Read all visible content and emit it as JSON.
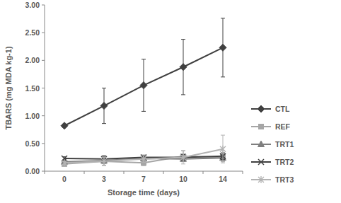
{
  "chart_data": {
    "type": "line",
    "x_label": "Storage time (days)",
    "y_label": "TBARS (mg MDA kg-1)",
    "categories": [
      "0",
      "3",
      "7",
      "10",
      "14"
    ],
    "ylim": [
      0,
      3
    ],
    "yticks": [
      {
        "value": 0,
        "label": "0.00"
      },
      {
        "value": 0.5,
        "label": "0.50"
      },
      {
        "value": 1,
        "label": "1.00"
      },
      {
        "value": 1.5,
        "label": "1.50"
      },
      {
        "value": 2,
        "label": "2.00"
      },
      {
        "value": 2.5,
        "label": "2.50"
      },
      {
        "value": 3,
        "label": "3.00"
      }
    ],
    "grid": false,
    "legend": "right",
    "series": [
      {
        "name": "CTL",
        "color": "#404040",
        "marker": "diamond",
        "values": [
          0.82,
          1.18,
          1.55,
          1.88,
          2.23
        ],
        "errors": [
          0.03,
          0.32,
          0.47,
          0.5,
          0.53
        ]
      },
      {
        "name": "REF",
        "color": "#a6a6a6",
        "marker": "square",
        "values": [
          0.13,
          0.18,
          0.15,
          0.27,
          0.25
        ],
        "errors": [
          0.03,
          0.08,
          0.05,
          0.1,
          0.08
        ]
      },
      {
        "name": "TRT1",
        "color": "#7f7f7f",
        "marker": "triangle",
        "values": [
          0.17,
          0.19,
          0.23,
          0.22,
          0.24
        ],
        "errors": [
          0.03,
          0.05,
          0.04,
          0.04,
          0.05
        ]
      },
      {
        "name": "TRT2",
        "color": "#404040",
        "marker": "x",
        "values": [
          0.23,
          0.22,
          0.25,
          0.25,
          0.27
        ],
        "errors": [
          0.03,
          0.06,
          0.04,
          0.05,
          0.06
        ]
      },
      {
        "name": "TRT3",
        "color": "#b3b3b3",
        "marker": "star",
        "values": [
          0.15,
          0.18,
          0.22,
          0.25,
          0.4
        ],
        "errors": [
          0.03,
          0.07,
          0.06,
          0.12,
          0.25
        ]
      }
    ]
  }
}
